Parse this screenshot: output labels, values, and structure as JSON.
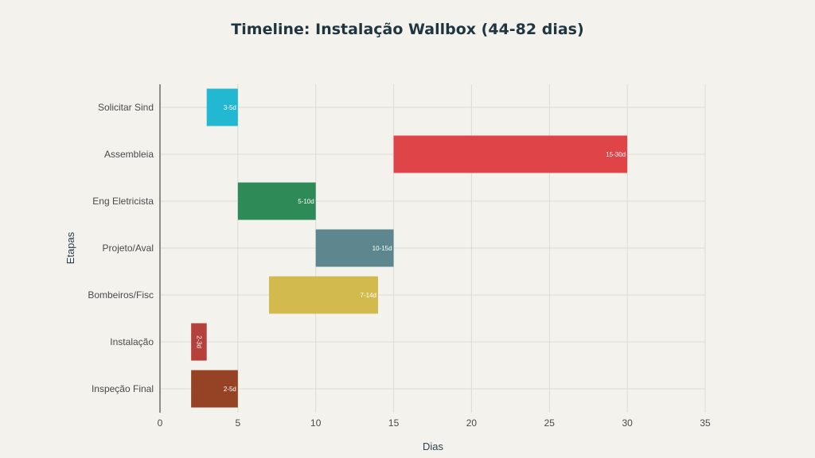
{
  "chart_data": {
    "type": "bar",
    "orientation": "horizontal",
    "title": "Timeline: Instalação Wallbox (44-82 dias)",
    "xlabel": "Dias",
    "ylabel": "Etapas",
    "xlim": [
      0,
      35
    ],
    "xticks": [
      0,
      5,
      10,
      15,
      20,
      25,
      30,
      35
    ],
    "grid": true,
    "categories": [
      "Solicitar Sind",
      "Assembleia",
      "Eng Eletricista",
      "Projeto/Aval",
      "Bombeiros/Fisc",
      "Instalação",
      "Inspeção Final"
    ],
    "series": [
      {
        "bars": [
          {
            "category": "Solicitar Sind",
            "start": 3,
            "end": 5,
            "label": "3-5d",
            "color": "#22b8d1"
          },
          {
            "category": "Assembleia",
            "start": 15,
            "end": 30,
            "label": "15-30d",
            "color": "#df4448"
          },
          {
            "category": "Eng Eletricista",
            "start": 5,
            "end": 10,
            "label": "5-10d",
            "color": "#2e8b57"
          },
          {
            "category": "Projeto/Aval",
            "start": 10,
            "end": 15,
            "label": "10-15d",
            "color": "#5d878f"
          },
          {
            "category": "Bombeiros/Fisc",
            "start": 7,
            "end": 14,
            "label": "7-14d",
            "color": "#d2ba4c"
          },
          {
            "category": "Instalação",
            "start": 2,
            "end": 3,
            "label": "2-3d",
            "color": "#b4413c"
          },
          {
            "category": "Inspeção Final",
            "start": 2,
            "end": 5,
            "label": "2-5d",
            "color": "#964325"
          }
        ]
      }
    ]
  }
}
